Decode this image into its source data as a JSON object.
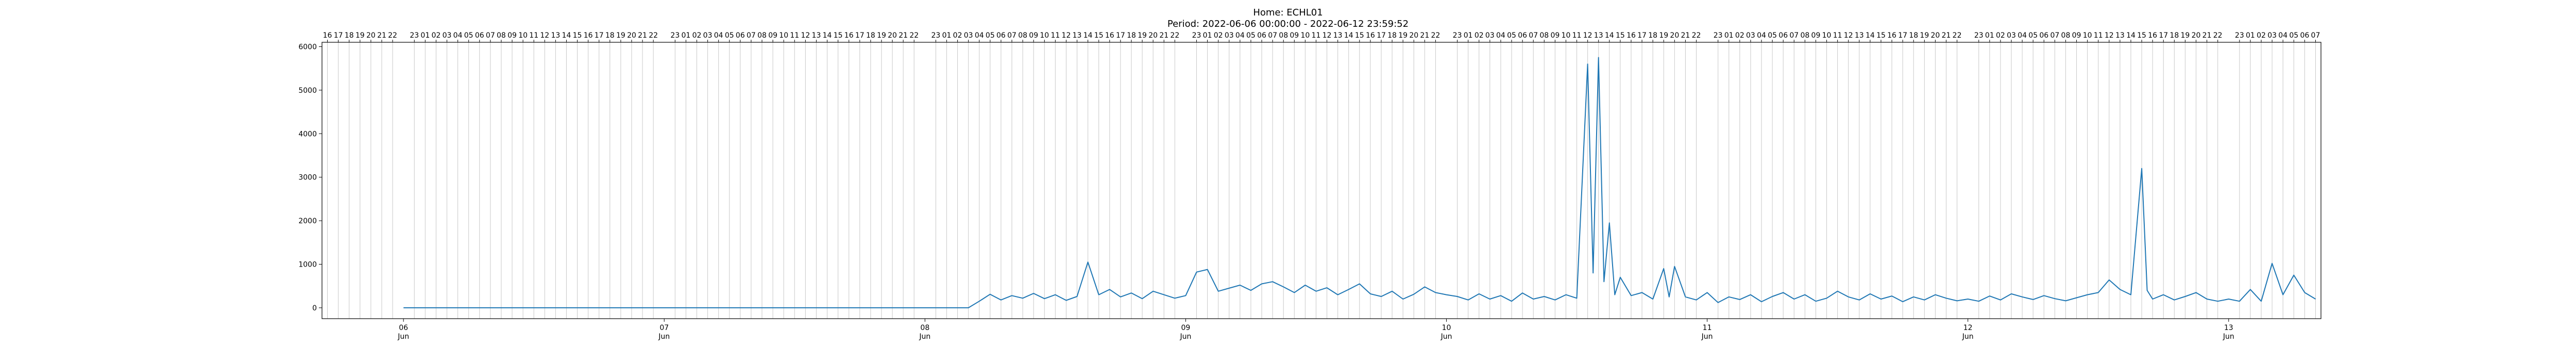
{
  "chart_data": {
    "type": "line",
    "title": "Home: ECHL01",
    "subtitle": "Period: 2022-06-06 00:00:00 - 2022-06-12 23:59:52",
    "xlabel": "",
    "ylabel": "",
    "xlim": [
      "2022-06-05 16:30",
      "2022-06-13 08:30"
    ],
    "ylim": [
      -250,
      6100
    ],
    "yticks": [
      0,
      1000,
      2000,
      3000,
      4000,
      5000,
      6000
    ],
    "grid": "vertical-hourly",
    "legend": "none",
    "line_color": "#1f77b4",
    "x_major_ticks": [
      {
        "date": "2022-06-06",
        "day": "06",
        "month": "Jun"
      },
      {
        "date": "2022-06-07",
        "day": "07",
        "month": "Jun"
      },
      {
        "date": "2022-06-08",
        "day": "08",
        "month": "Jun"
      },
      {
        "date": "2022-06-09",
        "day": "09",
        "month": "Jun"
      },
      {
        "date": "2022-06-10",
        "day": "10",
        "month": "Jun"
      },
      {
        "date": "2022-06-11",
        "day": "11",
        "month": "Jun"
      },
      {
        "date": "2022-06-12",
        "day": "12",
        "month": "Jun"
      },
      {
        "date": "2022-06-13",
        "day": "13",
        "month": "Jun"
      }
    ],
    "top_hour_ticks": [
      "16",
      "17",
      "18",
      "19",
      "20",
      "21",
      "22",
      "23",
      "01",
      "02",
      "03",
      "04",
      "05",
      "06",
      "07",
      "08",
      "09",
      "10",
      "11",
      "12",
      "13",
      "14",
      "15",
      "16",
      "17",
      "18",
      "19",
      "20",
      "21",
      "22",
      "23",
      "01",
      "02",
      "03",
      "04",
      "05",
      "06",
      "07",
      "08",
      "09",
      "10",
      "11",
      "12",
      "13",
      "14",
      "15",
      "16",
      "17",
      "18",
      "19",
      "20",
      "21",
      "22",
      "23",
      "01",
      "02",
      "03",
      "04",
      "05",
      "06",
      "07",
      "08",
      "09",
      "10",
      "11",
      "12",
      "13",
      "14",
      "15",
      "16",
      "17",
      "18",
      "19",
      "20",
      "21",
      "22",
      "23",
      "01",
      "02",
      "03",
      "04",
      "05",
      "06",
      "07",
      "08",
      "09",
      "10",
      "11",
      "12",
      "13",
      "14",
      "15",
      "16",
      "17",
      "18",
      "19",
      "20",
      "21",
      "22",
      "23",
      "01",
      "02",
      "03",
      "04",
      "05",
      "06",
      "07",
      "08",
      "09",
      "10",
      "11",
      "12",
      "13",
      "14",
      "15",
      "16",
      "17",
      "18",
      "19",
      "20",
      "21",
      "22",
      "23",
      "01",
      "02",
      "03",
      "04",
      "05",
      "06",
      "07",
      "08",
      "09",
      "10",
      "11",
      "12",
      "13",
      "14",
      "15",
      "16",
      "17",
      "18",
      "19",
      "20",
      "21",
      "22",
      "23",
      "01",
      "02",
      "03",
      "04",
      "05",
      "06",
      "07",
      "08",
      "09",
      "10",
      "11",
      "12",
      "13",
      "14",
      "15",
      "16",
      "17",
      "18",
      "19",
      "20",
      "21",
      "22",
      "23",
      "01",
      "02",
      "03",
      "04",
      "05",
      "06",
      "07",
      "08"
    ],
    "series": [
      {
        "points": [
          [
            "2022-06-06 00:00",
            0
          ],
          [
            "2022-06-08 04:00",
            0
          ],
          [
            "2022-06-08 05:00",
            150
          ],
          [
            "2022-06-08 06:00",
            310
          ],
          [
            "2022-06-08 07:00",
            180
          ],
          [
            "2022-06-08 08:00",
            280
          ],
          [
            "2022-06-08 09:00",
            220
          ],
          [
            "2022-06-08 10:00",
            330
          ],
          [
            "2022-06-08 11:00",
            210
          ],
          [
            "2022-06-08 12:00",
            300
          ],
          [
            "2022-06-08 13:00",
            170
          ],
          [
            "2022-06-08 14:00",
            260
          ],
          [
            "2022-06-08 15:00",
            1050
          ],
          [
            "2022-06-08 16:00",
            300
          ],
          [
            "2022-06-08 17:00",
            420
          ],
          [
            "2022-06-08 18:00",
            250
          ],
          [
            "2022-06-08 19:00",
            340
          ],
          [
            "2022-06-08 20:00",
            210
          ],
          [
            "2022-06-08 21:00",
            380
          ],
          [
            "2022-06-08 22:00",
            300
          ],
          [
            "2022-06-08 23:00",
            220
          ],
          [
            "2022-06-09 00:00",
            280
          ],
          [
            "2022-06-09 01:00",
            820
          ],
          [
            "2022-06-09 02:00",
            880
          ],
          [
            "2022-06-09 03:00",
            380
          ],
          [
            "2022-06-09 04:00",
            450
          ],
          [
            "2022-06-09 05:00",
            520
          ],
          [
            "2022-06-09 06:00",
            400
          ],
          [
            "2022-06-09 07:00",
            550
          ],
          [
            "2022-06-09 08:00",
            600
          ],
          [
            "2022-06-09 09:00",
            480
          ],
          [
            "2022-06-09 10:00",
            350
          ],
          [
            "2022-06-09 11:00",
            520
          ],
          [
            "2022-06-09 12:00",
            380
          ],
          [
            "2022-06-09 13:00",
            460
          ],
          [
            "2022-06-09 14:00",
            300
          ],
          [
            "2022-06-09 15:00",
            420
          ],
          [
            "2022-06-09 16:00",
            550
          ],
          [
            "2022-06-09 17:00",
            320
          ],
          [
            "2022-06-09 18:00",
            260
          ],
          [
            "2022-06-09 19:00",
            380
          ],
          [
            "2022-06-09 20:00",
            200
          ],
          [
            "2022-06-09 21:00",
            310
          ],
          [
            "2022-06-09 22:00",
            480
          ],
          [
            "2022-06-09 23:00",
            350
          ],
          [
            "2022-06-10 00:00",
            300
          ],
          [
            "2022-06-10 01:00",
            260
          ],
          [
            "2022-06-10 02:00",
            180
          ],
          [
            "2022-06-10 03:00",
            320
          ],
          [
            "2022-06-10 04:00",
            200
          ],
          [
            "2022-06-10 05:00",
            280
          ],
          [
            "2022-06-10 06:00",
            150
          ],
          [
            "2022-06-10 07:00",
            340
          ],
          [
            "2022-06-10 08:00",
            200
          ],
          [
            "2022-06-10 09:00",
            260
          ],
          [
            "2022-06-10 10:00",
            180
          ],
          [
            "2022-06-10 11:00",
            300
          ],
          [
            "2022-06-10 12:00",
            220
          ],
          [
            "2022-06-10 13:00",
            5600
          ],
          [
            "2022-06-10 13:30",
            800
          ],
          [
            "2022-06-10 14:00",
            5750
          ],
          [
            "2022-06-10 14:30",
            600
          ],
          [
            "2022-06-10 15:00",
            1950
          ],
          [
            "2022-06-10 15:30",
            300
          ],
          [
            "2022-06-10 16:00",
            700
          ],
          [
            "2022-06-10 17:00",
            280
          ],
          [
            "2022-06-10 18:00",
            350
          ],
          [
            "2022-06-10 19:00",
            200
          ],
          [
            "2022-06-10 20:00",
            900
          ],
          [
            "2022-06-10 20:30",
            250
          ],
          [
            "2022-06-10 21:00",
            950
          ],
          [
            "2022-06-10 22:00",
            250
          ],
          [
            "2022-06-10 23:00",
            180
          ],
          [
            "2022-06-11 00:00",
            350
          ],
          [
            "2022-06-11 01:00",
            120
          ],
          [
            "2022-06-11 02:00",
            250
          ],
          [
            "2022-06-11 03:00",
            190
          ],
          [
            "2022-06-11 04:00",
            300
          ],
          [
            "2022-06-11 05:00",
            140
          ],
          [
            "2022-06-11 06:00",
            260
          ],
          [
            "2022-06-11 07:00",
            350
          ],
          [
            "2022-06-11 08:00",
            200
          ],
          [
            "2022-06-11 09:00",
            300
          ],
          [
            "2022-06-11 10:00",
            150
          ],
          [
            "2022-06-11 11:00",
            220
          ],
          [
            "2022-06-11 12:00",
            380
          ],
          [
            "2022-06-11 13:00",
            250
          ],
          [
            "2022-06-11 14:00",
            180
          ],
          [
            "2022-06-11 15:00",
            320
          ],
          [
            "2022-06-11 16:00",
            200
          ],
          [
            "2022-06-11 17:00",
            270
          ],
          [
            "2022-06-11 18:00",
            140
          ],
          [
            "2022-06-11 19:00",
            250
          ],
          [
            "2022-06-11 20:00",
            180
          ],
          [
            "2022-06-11 21:00",
            300
          ],
          [
            "2022-06-11 22:00",
            220
          ],
          [
            "2022-06-11 23:00",
            160
          ],
          [
            "2022-06-12 00:00",
            200
          ],
          [
            "2022-06-12 01:00",
            150
          ],
          [
            "2022-06-12 02:00",
            270
          ],
          [
            "2022-06-12 03:00",
            180
          ],
          [
            "2022-06-12 04:00",
            320
          ],
          [
            "2022-06-12 05:00",
            250
          ],
          [
            "2022-06-12 06:00",
            190
          ],
          [
            "2022-06-12 07:00",
            280
          ],
          [
            "2022-06-12 08:00",
            210
          ],
          [
            "2022-06-12 09:00",
            160
          ],
          [
            "2022-06-12 10:00",
            230
          ],
          [
            "2022-06-12 11:00",
            300
          ],
          [
            "2022-06-12 12:00",
            350
          ],
          [
            "2022-06-12 13:00",
            640
          ],
          [
            "2022-06-12 14:00",
            420
          ],
          [
            "2022-06-12 15:00",
            300
          ],
          [
            "2022-06-12 16:00",
            3200
          ],
          [
            "2022-06-12 16:30",
            400
          ],
          [
            "2022-06-12 17:00",
            200
          ],
          [
            "2022-06-12 18:00",
            300
          ],
          [
            "2022-06-12 19:00",
            180
          ],
          [
            "2022-06-12 20:00",
            260
          ],
          [
            "2022-06-12 21:00",
            350
          ],
          [
            "2022-06-12 22:00",
            200
          ],
          [
            "2022-06-12 23:00",
            150
          ],
          [
            "2022-06-13 00:00",
            200
          ],
          [
            "2022-06-13 01:00",
            150
          ],
          [
            "2022-06-13 02:00",
            420
          ],
          [
            "2022-06-13 03:00",
            150
          ],
          [
            "2022-06-13 04:00",
            1020
          ],
          [
            "2022-06-13 05:00",
            300
          ],
          [
            "2022-06-13 06:00",
            750
          ],
          [
            "2022-06-13 07:00",
            350
          ],
          [
            "2022-06-13 08:00",
            200
          ]
        ]
      }
    ]
  }
}
